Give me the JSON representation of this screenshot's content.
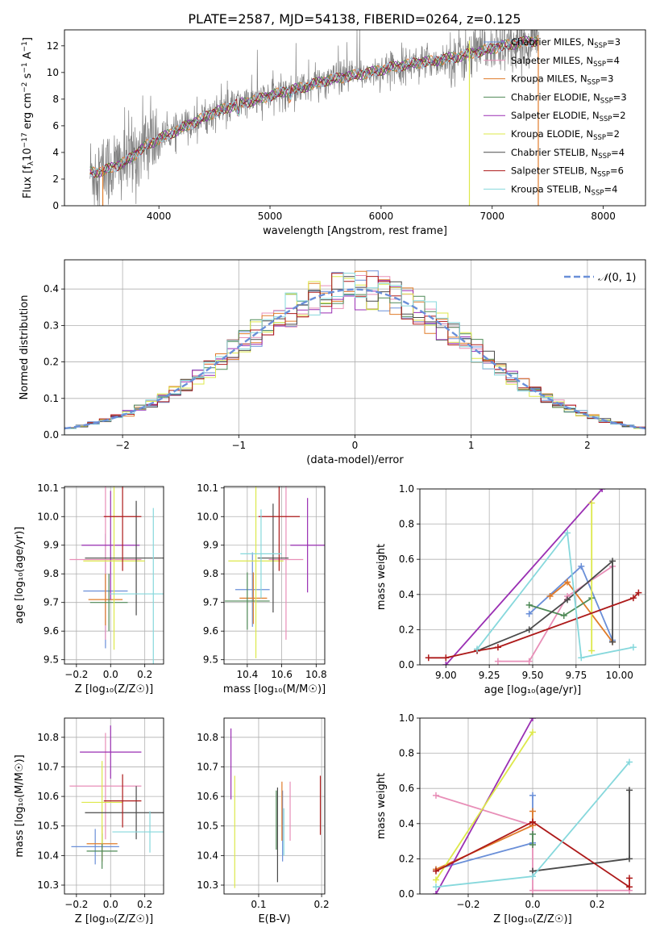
{
  "figure": {
    "title": "PLATE=2587, MJD=54138, FIBERID=0264, z=0.125"
  },
  "models": [
    {
      "key": "chab_miles",
      "label": "Chabrier MILES, N",
      "sub": "SSP",
      "suffix": "=3",
      "color": "#6a8fd8"
    },
    {
      "key": "salp_miles",
      "label": "Salpeter MILES, N",
      "sub": "SSP",
      "suffix": "=4",
      "color": "#e88fb8"
    },
    {
      "key": "krou_miles",
      "label": "Kroupa MILES, N",
      "sub": "SSP",
      "suffix": "=3",
      "color": "#e07c2a"
    },
    {
      "key": "chab_elodie",
      "label": "Chabrier ELODIE, N",
      "sub": "SSP",
      "suffix": "=3",
      "color": "#4f8a57"
    },
    {
      "key": "salp_elodie",
      "label": "Salpeter ELODIE, N",
      "sub": "SSP",
      "suffix": "=2",
      "color": "#9a2fb3"
    },
    {
      "key": "krou_elodie",
      "label": "Kroupa ELODIE, N",
      "sub": "SSP",
      "suffix": "=2",
      "color": "#dde84a"
    },
    {
      "key": "chab_stelib",
      "label": "Chabrier STELIB, N",
      "sub": "SSP",
      "suffix": "=4",
      "color": "#4a4a4a"
    },
    {
      "key": "salp_stelib",
      "label": "Salpeter STELIB, N",
      "sub": "SSP",
      "suffix": "=6",
      "color": "#ad1a1a"
    },
    {
      "key": "krou_stelib",
      "label": "Kroupa STELIB, N",
      "sub": "SSP",
      "suffix": "=4",
      "color": "#86d8dc"
    }
  ],
  "chart_data": [
    {
      "id": "spectrum",
      "type": "line",
      "xlabel": "wavelength [Angstrom, rest frame]",
      "ylabel_main": "Flux [f",
      "ylabel_sub": "λ",
      "ylabel_rest": "10",
      "ylabel_sup": "−17",
      "ylabel_tail": " erg cm",
      "ylabel_sup2": "−2",
      "ylabel_t2": " s",
      "ylabel_sup3": "−1",
      "ylabel_t3": " A",
      "ylabel_sup4": "−1",
      "ylabel_end": "]",
      "xlim": [
        3150,
        8380
      ],
      "ylim": [
        0,
        13.2
      ],
      "xticks": [
        4000,
        5000,
        6000,
        7000,
        8000
      ],
      "yticks": [
        0,
        2,
        4,
        6,
        8,
        10,
        12
      ],
      "data_range": [
        3380,
        7420
      ],
      "continuum": [
        [
          3380,
          2.5
        ],
        [
          3500,
          2.6
        ],
        [
          3700,
          3.3
        ],
        [
          3900,
          4.6
        ],
        [
          4100,
          5.4
        ],
        [
          4300,
          6.2
        ],
        [
          4500,
          7.0
        ],
        [
          4700,
          7.6
        ],
        [
          4900,
          8.0
        ],
        [
          5100,
          8.5
        ],
        [
          5300,
          8.9
        ],
        [
          5500,
          9.4
        ],
        [
          5700,
          9.7
        ],
        [
          5900,
          10.0
        ],
        [
          6100,
          10.4
        ],
        [
          6300,
          10.7
        ],
        [
          6500,
          10.9
        ],
        [
          6700,
          11.2
        ],
        [
          6900,
          11.6
        ],
        [
          7100,
          12.0
        ],
        [
          7300,
          12.3
        ],
        [
          7420,
          12.4
        ]
      ],
      "data_color": "#808080"
    },
    {
      "id": "residuals",
      "type": "histogram",
      "xlabel": "(data-model)/error",
      "ylabel": "Normed distribution",
      "xlim": [
        -2.5,
        2.5
      ],
      "ylim": [
        0,
        0.48
      ],
      "xticks": [
        -2,
        -1,
        0,
        1,
        2
      ],
      "xtick_labels": [
        "−2",
        "−1",
        "0",
        "1",
        "2"
      ],
      "yticks": [
        0,
        0.1,
        0.2,
        0.3,
        0.4
      ],
      "ytick_labels": [
        "0.0",
        "0.1",
        "0.2",
        "0.3",
        "0.4"
      ],
      "bin_width": 0.1,
      "gaussian_label_pre": "𝒩",
      "gaussian_label_post": "(0, 1)",
      "gaussian_color": "#6a8fd8"
    },
    {
      "id": "age_vs_Z",
      "type": "errorbar",
      "xlabel": "Z [log₁₀(Z/Z☉)]",
      "ylabel": "age  [log₁₀(age/yr)]",
      "xlim": [
        -0.27,
        0.31
      ],
      "ylim": [
        9.485,
        10.105
      ],
      "xticks": [
        -0.2,
        0.0,
        0.2
      ],
      "xtick_labels": [
        "−0.2",
        "0.0",
        "0.2"
      ],
      "yticks": [
        9.5,
        9.6,
        9.7,
        9.8,
        9.9,
        10.0,
        10.1
      ],
      "ytick_labels": [
        "9.5",
        "9.6",
        "9.7",
        "9.8",
        "9.9",
        "10.0",
        "10.1"
      ],
      "points": [
        {
          "m": "chab_miles",
          "x": -0.03,
          "xe": 0.13,
          "y": 9.74,
          "ye": 0.2
        },
        {
          "m": "salp_miles",
          "x": -0.03,
          "xe": 0.21,
          "y": 9.85,
          "ye": 0.28
        },
        {
          "m": "krou_miles",
          "x": -0.03,
          "xe": 0.1,
          "y": 9.71,
          "ye": 0.09
        },
        {
          "m": "chab_elodie",
          "x": -0.01,
          "xe": 0.11,
          "y": 9.7,
          "ye": 0.1
        },
        {
          "m": "salp_elodie",
          "x": 0.0,
          "xe": 0.17,
          "y": 9.9,
          "ye": 0.19
        },
        {
          "m": "krou_elodie",
          "x": 0.02,
          "xe": 0.18,
          "y": 9.845,
          "ye": 0.31
        },
        {
          "m": "chab_stelib",
          "x": 0.15,
          "xe": 0.3,
          "y": 9.855,
          "ye": 0.2
        },
        {
          "m": "salp_stelib",
          "x": 0.07,
          "xe": 0.11,
          "y": 10.0,
          "ye": 0.19
        },
        {
          "m": "krou_stelib",
          "x": 0.25,
          "xe": 0.25,
          "y": 9.73,
          "ye": 0.3
        }
      ]
    },
    {
      "id": "age_vs_mass",
      "type": "errorbar",
      "xlabel": "mass [log₁₀(M/M☉)]",
      "ylabel": "",
      "xlim": [
        10.265,
        10.85
      ],
      "ylim": [
        9.485,
        10.105
      ],
      "xticks": [
        10.4,
        10.6,
        10.8
      ],
      "xtick_labels": [
        "10.4",
        "10.6",
        "10.8"
      ],
      "yticks": [
        9.5,
        9.6,
        9.7,
        9.8,
        9.9,
        10.0,
        10.1
      ],
      "ytick_labels": [
        "9.5",
        "9.6",
        "9.7",
        "9.8",
        "9.9",
        "10.0",
        "10.1"
      ],
      "points": [
        {
          "m": "chab_miles",
          "x": 10.43,
          "xe": 0.1,
          "y": 9.745,
          "ye": 0.13
        },
        {
          "m": "salp_miles",
          "x": 10.625,
          "xe": 0.1,
          "y": 9.85,
          "ye": 0.28
        },
        {
          "m": "krou_miles",
          "x": 10.435,
          "xe": 0.08,
          "y": 9.715,
          "ye": 0.09
        },
        {
          "m": "chab_elodie",
          "x": 10.4,
          "xe": 0.13,
          "y": 9.705,
          "ye": 0.1
        },
        {
          "m": "salp_elodie",
          "x": 10.75,
          "xe": 0.1,
          "y": 9.9,
          "ye": 0.165
        },
        {
          "m": "krou_elodie",
          "x": 10.45,
          "xe": 0.16,
          "y": 9.845,
          "ye": 0.34
        },
        {
          "m": "chab_stelib",
          "x": 10.55,
          "xe": 0.09,
          "y": 9.855,
          "ye": 0.19
        },
        {
          "m": "salp_stelib",
          "x": 10.585,
          "xe": 0.12,
          "y": 10.0,
          "ye": 0.19
        },
        {
          "m": "krou_stelib",
          "x": 10.48,
          "xe": 0.12,
          "y": 9.87,
          "ye": 0.155
        }
      ]
    },
    {
      "id": "weight_vs_age",
      "type": "line",
      "xlabel": "age  [log₁₀(age/yr)]",
      "ylabel": "mass weight",
      "xlim": [
        8.85,
        10.15
      ],
      "ylim": [
        0,
        1
      ],
      "xticks": [
        9.0,
        9.25,
        9.5,
        9.75,
        10.0
      ],
      "xtick_labels": [
        "9.00",
        "9.25",
        "9.50",
        "9.75",
        "10.00"
      ],
      "yticks": [
        0,
        0.2,
        0.4,
        0.6,
        0.8,
        1.0
      ],
      "ytick_labels": [
        "0.0",
        "0.2",
        "0.4",
        "0.6",
        "0.8",
        "1.0"
      ],
      "series": [
        {
          "m": "chab_miles",
          "x": [
            9.48,
            9.78,
            9.96
          ],
          "y": [
            0.29,
            0.56,
            0.14
          ]
        },
        {
          "m": "salp_miles",
          "x": [
            9.3,
            9.48,
            9.7,
            9.96
          ],
          "y": [
            0.02,
            0.02,
            0.39,
            0.56
          ]
        },
        {
          "m": "krou_miles",
          "x": [
            9.6,
            9.7,
            9.96
          ],
          "y": [
            0.39,
            0.47,
            0.13
          ]
        },
        {
          "m": "chab_elodie",
          "x": [
            9.48,
            9.68,
            9.84
          ],
          "y": [
            0.34,
            0.28,
            0.38
          ]
        },
        {
          "m": "salp_elodie",
          "x": [
            9.0,
            9.9
          ],
          "y": [
            0.0,
            1.0
          ]
        },
        {
          "m": "krou_elodie",
          "x": [
            9.84,
            9.84
          ],
          "y": [
            0.08,
            0.92
          ]
        },
        {
          "m": "chab_stelib",
          "x": [
            9.18,
            9.48,
            9.7,
            9.96,
            9.96
          ],
          "y": [
            0.08,
            0.2,
            0.37,
            0.59,
            0.13
          ]
        },
        {
          "m": "salp_stelib",
          "x": [
            8.9,
            9.0,
            9.18,
            9.3,
            10.08,
            10.11
          ],
          "y": [
            0.04,
            0.04,
            0.08,
            0.1,
            0.38,
            0.41
          ]
        },
        {
          "m": "krou_stelib",
          "x": [
            9.18,
            9.7,
            9.78,
            10.08
          ],
          "y": [
            0.09,
            0.75,
            0.04,
            0.1
          ]
        }
      ]
    },
    {
      "id": "mass_vs_Z",
      "type": "errorbar",
      "xlabel": "Z [log₁₀(Z/Z☉)]",
      "ylabel": "mass [log₁₀(M/M☉)]",
      "xlim": [
        -0.27,
        0.31
      ],
      "ylim": [
        10.27,
        10.865
      ],
      "xticks": [
        -0.2,
        0.0,
        0.2
      ],
      "xtick_labels": [
        "−0.2",
        "0.0",
        "0.2"
      ],
      "yticks": [
        10.3,
        10.4,
        10.5,
        10.6,
        10.7,
        10.8
      ],
      "ytick_labels": [
        "10.3",
        "10.4",
        "10.5",
        "10.6",
        "10.7",
        "10.8"
      ],
      "points": [
        {
          "m": "chab_miles",
          "x": -0.09,
          "xe": 0.14,
          "y": 10.43,
          "ye": 0.06
        },
        {
          "m": "salp_miles",
          "x": -0.03,
          "xe": 0.21,
          "y": 10.635,
          "ye": 0.18
        },
        {
          "m": "krou_miles",
          "x": -0.05,
          "xe": 0.09,
          "y": 10.44,
          "ye": 0.06
        },
        {
          "m": "chab_elodie",
          "x": -0.05,
          "xe": 0.09,
          "y": 10.415,
          "ye": 0.06
        },
        {
          "m": "salp_elodie",
          "x": 0.0,
          "xe": 0.18,
          "y": 10.75,
          "ye": 0.09
        },
        {
          "m": "krou_elodie",
          "x": -0.05,
          "xe": 0.12,
          "y": 10.58,
          "ye": 0.14
        },
        {
          "m": "chab_stelib",
          "x": 0.15,
          "xe": 0.3,
          "y": 10.545,
          "ye": 0.09
        },
        {
          "m": "salp_stelib",
          "x": 0.07,
          "xe": 0.11,
          "y": 10.585,
          "ye": 0.09
        },
        {
          "m": "krou_stelib",
          "x": 0.23,
          "xe": 0.22,
          "y": 10.48,
          "ye": 0.07
        }
      ]
    },
    {
      "id": "mass_vs_ebv",
      "type": "errorbar",
      "xlabel": "E(B-V)",
      "ylabel": "",
      "xlim": [
        0.045,
        0.205
      ],
      "ylim": [
        10.27,
        10.865
      ],
      "xticks": [
        0.1,
        0.2
      ],
      "xtick_labels": [
        "0.1",
        "0.2"
      ],
      "yticks": [
        10.3,
        10.4,
        10.5,
        10.6,
        10.7,
        10.8
      ],
      "ytick_labels": [
        "10.3",
        "10.4",
        "10.5",
        "10.6",
        "10.7",
        "10.8"
      ],
      "points": [
        {
          "m": "chab_miles",
          "x": 0.138,
          "xe": 0,
          "y": 10.5,
          "ye": 0.12
        },
        {
          "m": "salp_miles",
          "x": 0.15,
          "xe": 0,
          "y": 10.55,
          "ye": 0.1
        },
        {
          "m": "krou_miles",
          "x": 0.137,
          "xe": 0,
          "y": 10.55,
          "ye": 0.1
        },
        {
          "m": "chab_elodie",
          "x": 0.128,
          "xe": 0,
          "y": 10.52,
          "ye": 0.1
        },
        {
          "m": "salp_elodie",
          "x": 0.056,
          "xe": 0,
          "y": 10.71,
          "ye": 0.12
        },
        {
          "m": "krou_elodie",
          "x": 0.062,
          "xe": 0,
          "y": 10.48,
          "ye": 0.19
        },
        {
          "m": "chab_stelib",
          "x": 0.13,
          "xe": 0,
          "y": 10.47,
          "ye": 0.16
        },
        {
          "m": "salp_stelib",
          "x": 0.198,
          "xe": 0,
          "y": 10.57,
          "ye": 0.1
        },
        {
          "m": "krou_stelib",
          "x": 0.14,
          "xe": 0,
          "y": 10.48,
          "ye": 0.08
        }
      ]
    },
    {
      "id": "weight_vs_Z",
      "type": "line",
      "xlabel": "Z [log₁₀(Z/Z☉)]",
      "ylabel": "mass weight",
      "xlim": [
        -0.35,
        0.35
      ],
      "ylim": [
        0,
        1
      ],
      "xticks": [
        -0.2,
        0.0,
        0.2
      ],
      "xtick_labels": [
        "−0.2",
        "0.0",
        "0.2"
      ],
      "yticks": [
        0,
        0.2,
        0.4,
        0.6,
        0.8,
        1.0
      ],
      "ytick_labels": [
        "0.0",
        "0.2",
        "0.4",
        "0.6",
        "0.8",
        "1.0"
      ],
      "series": [
        {
          "m": "chab_miles",
          "x": [
            -0.3,
            0.0,
            0.0
          ],
          "y": [
            0.14,
            0.29,
            0.56
          ]
        },
        {
          "m": "salp_miles",
          "x": [
            -0.3,
            0.0,
            0.0,
            0.3
          ],
          "y": [
            0.56,
            0.39,
            0.02,
            0.02
          ]
        },
        {
          "m": "krou_miles",
          "x": [
            -0.3,
            0.0,
            0.0
          ],
          "y": [
            0.14,
            0.39,
            0.47
          ]
        },
        {
          "m": "chab_elodie",
          "x": [
            0.0,
            0.0
          ],
          "y": [
            0.34,
            0.28
          ]
        },
        {
          "m": "salp_elodie",
          "x": [
            -0.3,
            0.0
          ],
          "y": [
            0.0,
            1.0
          ]
        },
        {
          "m": "krou_elodie",
          "x": [
            -0.3,
            0.0
          ],
          "y": [
            0.08,
            0.92
          ]
        },
        {
          "m": "chab_stelib",
          "x": [
            0.0,
            0.3,
            0.3
          ],
          "y": [
            0.13,
            0.2,
            0.59
          ]
        },
        {
          "m": "salp_stelib",
          "x": [
            -0.3,
            0.0,
            0.3,
            0.3
          ],
          "y": [
            0.13,
            0.41,
            0.04,
            0.09
          ]
        },
        {
          "m": "krou_stelib",
          "x": [
            -0.3,
            0.0,
            0.3
          ],
          "y": [
            0.04,
            0.1,
            0.75
          ]
        }
      ]
    }
  ]
}
